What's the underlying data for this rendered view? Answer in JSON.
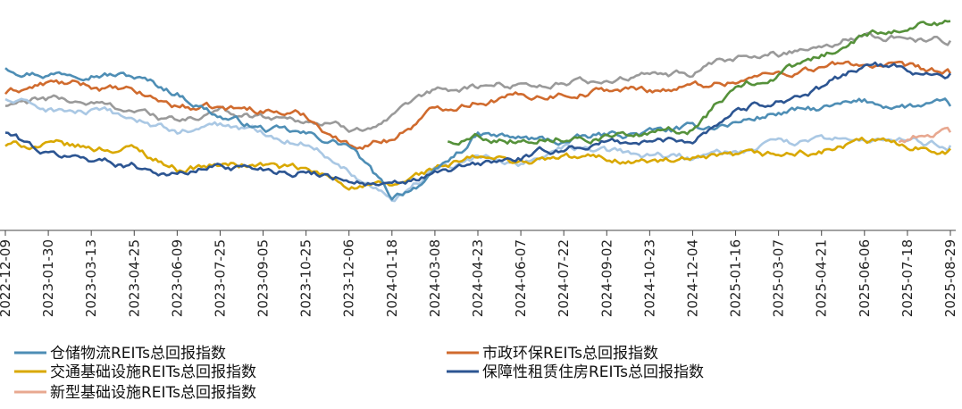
{
  "chart_data": {
    "type": "line",
    "title": "",
    "xlabel": "",
    "ylabel": "",
    "grid": false,
    "legend_position": "bottom",
    "x_ticks": [
      "2022-12-09",
      "2023-01-30",
      "2023-03-13",
      "2023-04-25",
      "2023-06-09",
      "2023-07-25",
      "2023-09-05",
      "2023-10-25",
      "2023-12-06",
      "2024-01-18",
      "2024-03-08",
      "2024-04-23",
      "2024-06-07",
      "2024-07-22",
      "2024-09-02",
      "2024-10-23",
      "2024-12-04",
      "2025-01-16",
      "2025-03-07",
      "2025-04-21",
      "2025-06-06",
      "2025-07-18",
      "2025-08-29"
    ],
    "ylim": [
      70,
      135
    ],
    "series": [
      {
        "name": "仓储物流REITs总回报指数",
        "color": "#4e8eb5",
        "anchors": [
          [
            0,
            120
          ],
          [
            1,
            118
          ],
          [
            2,
            119
          ],
          [
            3,
            117
          ],
          [
            4,
            112
          ],
          [
            5,
            105
          ],
          [
            6,
            101
          ],
          [
            7,
            99
          ],
          [
            8,
            96
          ],
          [
            9,
            80
          ],
          [
            10,
            87
          ],
          [
            11,
            99
          ],
          [
            12,
            98
          ],
          [
            13,
            97
          ],
          [
            14,
            99
          ],
          [
            15,
            100
          ],
          [
            16,
            101
          ],
          [
            17,
            103
          ],
          [
            18,
            106
          ],
          [
            19,
            107
          ],
          [
            20,
            109
          ],
          [
            21,
            108
          ],
          [
            22,
            108
          ]
        ]
      },
      {
        "name": "市政环保REITs总回报指数",
        "color": "#d06b2e",
        "anchors": [
          [
            0,
            112
          ],
          [
            1,
            115
          ],
          [
            2,
            114
          ],
          [
            3,
            112
          ],
          [
            4,
            108
          ],
          [
            5,
            107
          ],
          [
            6,
            107
          ],
          [
            7,
            105
          ],
          [
            8,
            96
          ],
          [
            9,
            98
          ],
          [
            10,
            107
          ],
          [
            11,
            110
          ],
          [
            12,
            111
          ],
          [
            13,
            112
          ],
          [
            14,
            113
          ],
          [
            15,
            113
          ],
          [
            16,
            114
          ],
          [
            17,
            116
          ],
          [
            18,
            118
          ],
          [
            19,
            120
          ],
          [
            20,
            121
          ],
          [
            21,
            119
          ],
          [
            22,
            118
          ]
        ]
      },
      {
        "name": "交通基础设施REITs总回报指数",
        "color": "#d9a800",
        "anchors": [
          [
            0,
            96
          ],
          [
            1,
            96
          ],
          [
            2,
            95
          ],
          [
            3,
            95
          ],
          [
            4,
            89
          ],
          [
            5,
            90
          ],
          [
            6,
            90
          ],
          [
            7,
            88
          ],
          [
            8,
            84
          ],
          [
            9,
            83
          ],
          [
            10,
            89
          ],
          [
            11,
            92
          ],
          [
            12,
            91
          ],
          [
            13,
            92
          ],
          [
            14,
            92
          ],
          [
            15,
            91
          ],
          [
            16,
            91
          ],
          [
            17,
            92
          ],
          [
            18,
            93
          ],
          [
            19,
            94
          ],
          [
            20,
            97
          ],
          [
            21,
            96
          ],
          [
            22,
            95
          ]
        ]
      },
      {
        "name": "保障性租赁住房REITs总回报指数",
        "color": "#2c5592",
        "anchors": [
          [
            0,
            100
          ],
          [
            1,
            93
          ],
          [
            2,
            92
          ],
          [
            3,
            90
          ],
          [
            4,
            87
          ],
          [
            5,
            90
          ],
          [
            6,
            89
          ],
          [
            7,
            88
          ],
          [
            8,
            86
          ],
          [
            9,
            83
          ],
          [
            10,
            87
          ],
          [
            11,
            90
          ],
          [
            12,
            92
          ],
          [
            13,
            95
          ],
          [
            14,
            97
          ],
          [
            15,
            97
          ],
          [
            16,
            98
          ],
          [
            17,
            107
          ],
          [
            18,
            110
          ],
          [
            19,
            113
          ],
          [
            20,
            121
          ],
          [
            21,
            119
          ],
          [
            22,
            118
          ]
        ]
      },
      {
        "name": "新型基础设施REITs总回报指数",
        "color": "#e8a890",
        "anchors": [
          [
            20.8,
            97
          ],
          [
            21.2,
            99
          ],
          [
            21.6,
            100
          ],
          [
            22,
            100
          ]
        ]
      },
      {
        "name": "",
        "color": "#9a9a9a",
        "anchors": [
          [
            0,
            108
          ],
          [
            1,
            110
          ],
          [
            2,
            109
          ],
          [
            3,
            107
          ],
          [
            4,
            103
          ],
          [
            5,
            106
          ],
          [
            6,
            105
          ],
          [
            7,
            104
          ],
          [
            8,
            101
          ],
          [
            9,
            104
          ],
          [
            10,
            112
          ],
          [
            11,
            114
          ],
          [
            12,
            115
          ],
          [
            13,
            115
          ],
          [
            14,
            116
          ],
          [
            15,
            117
          ],
          [
            16,
            118
          ],
          [
            17,
            122
          ],
          [
            18,
            124
          ],
          [
            19,
            127
          ],
          [
            20,
            130
          ],
          [
            21,
            129
          ],
          [
            22,
            128
          ]
        ]
      },
      {
        "name": "",
        "color": "#aac8e4",
        "anchors": [
          [
            0,
            110
          ],
          [
            1,
            107
          ],
          [
            2,
            106
          ],
          [
            3,
            104
          ],
          [
            4,
            100
          ],
          [
            5,
            102
          ],
          [
            6,
            100
          ],
          [
            7,
            97
          ],
          [
            8,
            89
          ],
          [
            9,
            80
          ],
          [
            10,
            88
          ],
          [
            11,
            92
          ],
          [
            12,
            91
          ],
          [
            13,
            95
          ],
          [
            14,
            94
          ],
          [
            15,
            93
          ],
          [
            16,
            92
          ],
          [
            17,
            94
          ],
          [
            18,
            96
          ],
          [
            19,
            97
          ],
          [
            20,
            98
          ],
          [
            21,
            97
          ],
          [
            22,
            96
          ]
        ]
      },
      {
        "name": "",
        "color": "#55913a",
        "anchors": [
          [
            10.3,
            97
          ],
          [
            11,
            99
          ],
          [
            12,
            98
          ],
          [
            13,
            99
          ],
          [
            14,
            99
          ],
          [
            15,
            99
          ],
          [
            16,
            101
          ],
          [
            17,
            114
          ],
          [
            18,
            118
          ],
          [
            19,
            123
          ],
          [
            20,
            130
          ],
          [
            21,
            133
          ],
          [
            22,
            134
          ]
        ]
      }
    ]
  }
}
